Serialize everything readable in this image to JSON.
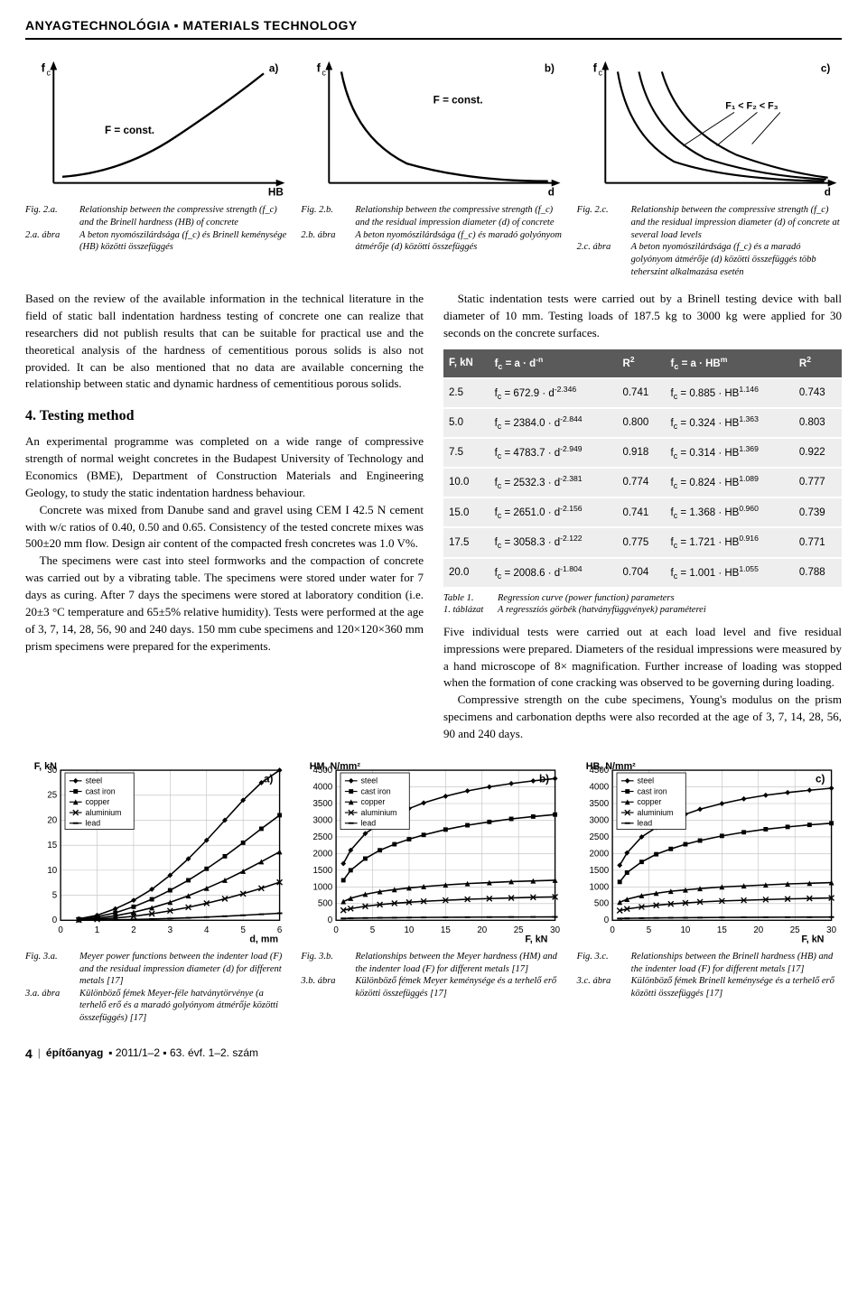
{
  "header": "ANYAGTECHNOLÓGIA ▪ MATERIALS TECHNOLOGY",
  "fig2": {
    "a": {
      "label_en": "Fig. 2.a.",
      "text_en": "Relationship between the compressive strength (f_c) and the Brinell hardness (HB) of concrete",
      "label_hu": "2.a. ábra",
      "text_hu": "A beton nyomószilárdsága (f_c) és Brinell keménysége (HB) közötti összefüggés",
      "panel_tag": "a)",
      "y_label": "f_c",
      "x_label": "HB",
      "note": "F = const.",
      "curve_color": "#000000",
      "bg": "#ffffff",
      "stroke_width": 2
    },
    "b": {
      "label_en": "Fig. 2.b.",
      "text_en": "Relationship between the compressive strength (f_c) and the residual impression diameter (d) of concrete",
      "label_hu": "2.b. ábra",
      "text_hu": "A beton nyomószilárdsága (f_c) és maradó golyónyom átmérője (d) közötti összefüggés",
      "panel_tag": "b)",
      "y_label": "f_c",
      "x_label": "d",
      "note": "F = const.",
      "curve_color": "#000000",
      "bg": "#ffffff",
      "stroke_width": 2
    },
    "c": {
      "label_en": "Fig. 2.c.",
      "text_en": "Relationship between the compressive strength (f_c) and the residual impression diameter (d) of concrete at several load levels",
      "label_hu": "2.c. ábra",
      "text_hu": "A beton nyomószilárdsága (f_c) és a maradó golyónyom átmérője (d) közötti összefüggés több teherszint alkalmazása esetén",
      "panel_tag": "c)",
      "y_label": "f_c",
      "x_label": "d",
      "note": "F₁ < F₂ < F₃",
      "curve_color": "#000000",
      "bg": "#ffffff",
      "stroke_width": 2,
      "num_curves": 3
    }
  },
  "body": {
    "p1": "Based on the review of the available information in the technical literature in the field of static ball indentation hardness testing of concrete one can realize that researchers did not publish results that can be suitable for practical use and the theoretical analysis of the hardness of cementitious porous solids is also not provided. It can be also mentioned that no data are available concerning the relationship between static and dynamic hardness of cementitious porous solids.",
    "h4": "4. Testing method",
    "p2": "An experimental programme was completed on a wide range of compressive strength of normal weight concretes in the Budapest University of Technology and Economics (BME), Department of Construction Materials and Engineering Geology, to study the static indentation hardness behaviour.",
    "p3": "Concrete was mixed from Danube sand and gravel using CEM I 42.5 N cement with w/c ratios of 0.40, 0.50 and 0.65. Consistency of the tested concrete mixes was 500±20 mm flow. Design air content of the compacted fresh concretes was 1.0 V%.",
    "p4": "The specimens were cast into steel formworks and the compaction of concrete was carried out by a vibrating table. The specimens were stored under water for 7 days as curing. After 7 days the specimens were stored at laboratory condition (i.e. 20±3 °C temperature and 65±5% relative humidity). Tests were performed at the age of 3, 7, 14, 28, 56, 90 and 240 days. 150 mm cube specimens and 120×120×360 mm prism specimens were prepared for the experiments.",
    "p5": "Static indentation tests were carried out by a Brinell testing device with ball diameter of 10 mm. Testing loads of 187.5 kg to 3000 kg were applied for 30 seconds on the concrete surfaces.",
    "p6": "Five individual tests were carried out at each load level and five residual impressions were prepared. Diameters of the residual impressions were measured by a hand microscope of 8× magnification. Further increase of loading was stopped when the formation of cone cracking was observed to be governing during loading.",
    "p7": "Compressive strength on the cube specimens, Young's modulus on the prism specimens and carbonation depths were also recorded at the age of 3, 7, 14, 28, 56, 90 and 240 days."
  },
  "table1": {
    "header_bg": "#5a5a5a",
    "header_fg": "#ffffff",
    "row_bg": "#eeeeee",
    "fontsize": 11.5,
    "columns": [
      "F, kN",
      "f_c = a · d^-n",
      "R²",
      "f_c = a · HB^m",
      "R²"
    ],
    "rows": [
      [
        "2.5",
        "f_c = 672.9 · d^-2.346",
        "0.741",
        "f_c = 0.885 · HB^1.146",
        "0.743"
      ],
      [
        "5.0",
        "f_c = 2384.0 · d^-2.844",
        "0.800",
        "f_c = 0.324 · HB^1.363",
        "0.803"
      ],
      [
        "7.5",
        "f_c = 4783.7 · d^-2.949",
        "0.918",
        "f_c = 0.314 · HB^1.369",
        "0.922"
      ],
      [
        "10.0",
        "f_c = 2532.3 · d^-2.381",
        "0.774",
        "f_c = 0.824 · HB^1.089",
        "0.777"
      ],
      [
        "15.0",
        "f_c = 2651.0 · d^-2.156",
        "0.741",
        "f_c = 1.368 · HB^0.960",
        "0.739"
      ],
      [
        "17.5",
        "f_c = 3058.3 · d^-2.122",
        "0.775",
        "f_c = 1.721 · HB^0.916",
        "0.771"
      ],
      [
        "20.0",
        "f_c = 2008.6 · d^-1.804",
        "0.704",
        "f_c = 1.001 · HB^1.055",
        "0.788"
      ]
    ],
    "caption_en_label": "Table 1.",
    "caption_en": "Regression curve (power function) parameters",
    "caption_hu_label": "1. táblázat",
    "caption_hu": "A regressziós görbék (hatványfüggvények) paraméterei"
  },
  "fig3": {
    "common": {
      "series": [
        "steel",
        "cast iron",
        "copper",
        "aluminium",
        "lead"
      ],
      "markers": [
        "diamond",
        "square",
        "triangle",
        "x",
        "dash"
      ],
      "line_color": "#000000",
      "bg": "#ffffff",
      "grid_color": "#bdbdbd",
      "tick_fontsize": 10,
      "legend_fontsize": 9,
      "stroke_width": 1.6,
      "ref": "[17]"
    },
    "a": {
      "panel_tag": "a)",
      "label_en": "Fig. 3.a.",
      "text_en": "Meyer power functions between the indenter load (F) and the residual impression diameter (d) for different metals [17]",
      "label_hu": "3.a. ábra",
      "text_hu": "Különböző fémek Meyer-féle hatványtörvénye (a terhelő erő és a maradó golyónyom átmérője közötti összefüggés) [17]",
      "x_label": "d, mm",
      "y_label": "F, kN",
      "xlim": [
        0,
        6
      ],
      "xtick_step": 1,
      "ylim": [
        0,
        30
      ],
      "ytick_step": 5,
      "data": {
        "steel": {
          "d": [
            0.5,
            1,
            1.5,
            2,
            2.5,
            3,
            3.5,
            4,
            4.5,
            5,
            5.5,
            6
          ],
          "F": [
            0.3,
            1.0,
            2.3,
            4.0,
            6.2,
            9.0,
            12.3,
            16.0,
            20.0,
            24.0,
            27.5,
            30.0
          ]
        },
        "cast_iron": {
          "d": [
            0.5,
            1,
            1.5,
            2,
            2.5,
            3,
            3.5,
            4,
            4.5,
            5,
            5.5,
            6
          ],
          "F": [
            0.2,
            0.7,
            1.5,
            2.7,
            4.2,
            6.0,
            8.0,
            10.3,
            12.8,
            15.5,
            18.3,
            21.0
          ]
        },
        "copper": {
          "d": [
            0.5,
            1,
            1.5,
            2,
            2.5,
            3,
            3.5,
            4,
            4.5,
            5,
            5.5,
            6
          ],
          "F": [
            0.1,
            0.4,
            0.9,
            1.6,
            2.5,
            3.6,
            4.9,
            6.4,
            8.0,
            9.8,
            11.7,
            13.7
          ]
        },
        "aluminium": {
          "d": [
            0.5,
            1,
            1.5,
            2,
            2.5,
            3,
            3.5,
            4,
            4.5,
            5,
            5.5,
            6
          ],
          "F": [
            0.05,
            0.2,
            0.45,
            0.8,
            1.3,
            1.9,
            2.6,
            3.4,
            4.3,
            5.3,
            6.4,
            7.6
          ]
        },
        "lead": {
          "d": [
            0.5,
            1,
            1.5,
            2,
            2.5,
            3,
            3.5,
            4,
            4.5,
            5,
            5.5,
            6
          ],
          "F": [
            0.01,
            0.04,
            0.09,
            0.16,
            0.25,
            0.36,
            0.49,
            0.64,
            0.81,
            1.0,
            1.2,
            1.4
          ]
        }
      }
    },
    "b": {
      "panel_tag": "b)",
      "label_en": "Fig. 3.b.",
      "text_en": "Relationships between the Meyer hardness (HM) and the indenter load (F) for different metals [17]",
      "label_hu": "3.b. ábra",
      "text_hu": "Különböző fémek Meyer keménysége és a terhelő erő közötti összefüggés [17]",
      "x_label": "F, kN",
      "y_label": "HM, N/mm²",
      "xlim": [
        0,
        30
      ],
      "xtick_step": 5,
      "ylim": [
        0,
        4500
      ],
      "ytick_step": 500,
      "data": {
        "steel": {
          "F": [
            1,
            2,
            4,
            6,
            8,
            10,
            12,
            15,
            18,
            21,
            24,
            27,
            30
          ],
          "HM": [
            1700,
            2100,
            2600,
            2900,
            3150,
            3350,
            3520,
            3720,
            3880,
            4000,
            4100,
            4180,
            4250
          ]
        },
        "cast_iron": {
          "F": [
            1,
            2,
            4,
            6,
            8,
            10,
            12,
            15,
            18,
            21,
            24,
            27,
            30
          ],
          "HM": [
            1200,
            1500,
            1850,
            2100,
            2280,
            2430,
            2560,
            2720,
            2850,
            2950,
            3040,
            3110,
            3170
          ]
        },
        "copper": {
          "F": [
            1,
            2,
            4,
            6,
            8,
            10,
            12,
            15,
            18,
            21,
            24,
            27,
            30
          ],
          "HM": [
            560,
            660,
            780,
            860,
            920,
            970,
            1010,
            1060,
            1100,
            1130,
            1160,
            1180,
            1200
          ]
        },
        "aluminium": {
          "F": [
            1,
            2,
            4,
            6,
            8,
            10,
            12,
            15,
            18,
            21,
            24,
            27,
            30
          ],
          "HM": [
            300,
            350,
            420,
            470,
            510,
            540,
            570,
            600,
            630,
            650,
            670,
            690,
            700
          ]
        },
        "lead": {
          "F": [
            1,
            2,
            4,
            6,
            8,
            10,
            12,
            15,
            18,
            21,
            24,
            27,
            30
          ],
          "HM": [
            55,
            60,
            68,
            74,
            78,
            82,
            85,
            89,
            92,
            95,
            97,
            99,
            100
          ]
        }
      }
    },
    "c": {
      "panel_tag": "c)",
      "label_en": "Fig. 3.c.",
      "text_en": "Relationships between the Brinell hardness (HB) and the indenter load (F) for different metals [17]",
      "label_hu": "3.c. ábra",
      "text_hu": "Különböző fémek Brinell keménysége és a terhelő erő közötti összefüggés [17]",
      "x_label": "F, kN",
      "y_label": "HB, N/mm²",
      "xlim": [
        0,
        30
      ],
      "xtick_step": 5,
      "ylim": [
        0,
        4500
      ],
      "ytick_step": 500,
      "data": {
        "steel": {
          "F": [
            1,
            2,
            4,
            6,
            8,
            10,
            12,
            15,
            18,
            21,
            24,
            27,
            30
          ],
          "HB": [
            1650,
            2020,
            2500,
            2780,
            3000,
            3180,
            3330,
            3500,
            3640,
            3750,
            3830,
            3900,
            3960
          ]
        },
        "cast_iron": {
          "F": [
            1,
            2,
            4,
            6,
            8,
            10,
            12,
            15,
            18,
            21,
            24,
            27,
            30
          ],
          "HB": [
            1150,
            1430,
            1750,
            1980,
            2140,
            2280,
            2390,
            2530,
            2640,
            2730,
            2800,
            2860,
            2910
          ]
        },
        "copper": {
          "F": [
            1,
            2,
            4,
            6,
            8,
            10,
            12,
            15,
            18,
            21,
            24,
            27,
            30
          ],
          "HB": [
            540,
            630,
            740,
            810,
            870,
            910,
            950,
            1000,
            1030,
            1060,
            1090,
            1110,
            1130
          ]
        },
        "aluminium": {
          "F": [
            1,
            2,
            4,
            6,
            8,
            10,
            12,
            15,
            18,
            21,
            24,
            27,
            30
          ],
          "HB": [
            290,
            340,
            400,
            450,
            490,
            520,
            550,
            580,
            600,
            620,
            640,
            655,
            670
          ]
        },
        "lead": {
          "F": [
            1,
            2,
            4,
            6,
            8,
            10,
            12,
            15,
            18,
            21,
            24,
            27,
            30
          ],
          "HB": [
            53,
            58,
            65,
            70,
            75,
            78,
            81,
            85,
            88,
            90,
            92,
            94,
            96
          ]
        }
      }
    }
  },
  "footer": {
    "page": "4",
    "journal": "építőanyag",
    "issue": "▪ 2011/1–2 ▪ 63. évf. 1–2. szám"
  }
}
